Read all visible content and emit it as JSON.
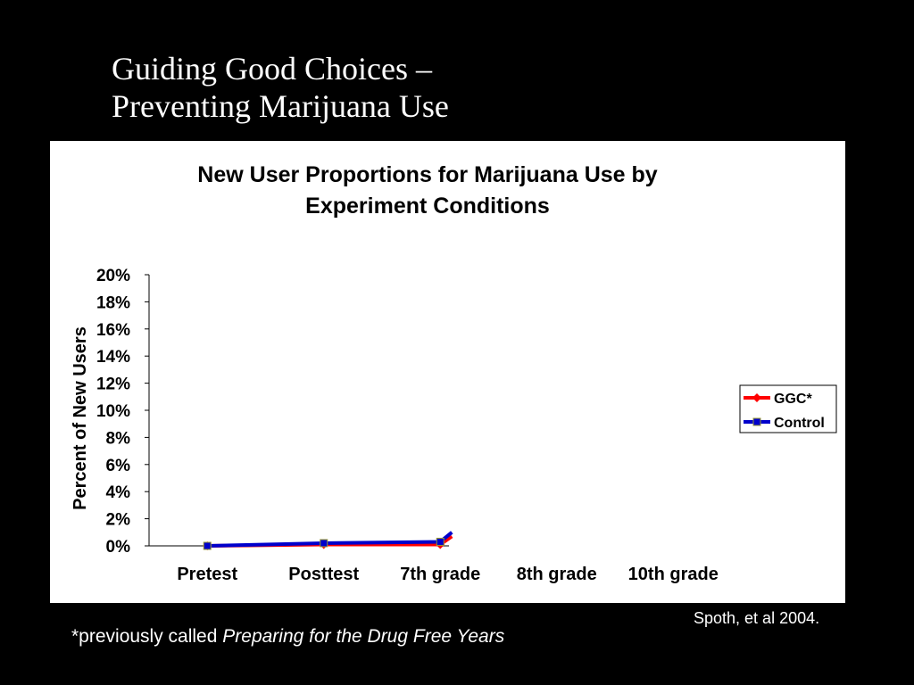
{
  "slide": {
    "title_line1": "Guiding Good Choices –",
    "title_line2": "Preventing Marijuana Use",
    "footnote_prefix": "*previously called ",
    "footnote_italic": "Preparing for the Drug Free Years",
    "citation": "Spoth, et al 2004."
  },
  "colors": {
    "background": "#000000",
    "panel": "#ffffff",
    "ggc": "#ff0000",
    "control": "#0000cc"
  },
  "chart_data": {
    "type": "line",
    "title_line1": "New User Proportions for Marijuana Use by",
    "title_line2": "Experiment Conditions",
    "xlabel": "",
    "ylabel": "Percent of New Users",
    "categories": [
      "Pretest",
      "Posttest",
      "7th grade",
      "8th grade",
      "10th grade"
    ],
    "yticks": [
      "0%",
      "2%",
      "4%",
      "6%",
      "8%",
      "10%",
      "12%",
      "14%",
      "16%",
      "18%",
      "20%"
    ],
    "ylim": [
      0,
      20
    ],
    "legend_position": "right",
    "series": [
      {
        "name": "GGC*",
        "color": "#ff0000",
        "marker": "diamond",
        "x": [
          0,
          1,
          2,
          2.1
        ],
        "values": [
          0.0,
          0.1,
          0.1,
          0.7
        ]
      },
      {
        "name": "Control",
        "color": "#0000cc",
        "marker": "square",
        "x": [
          0,
          1,
          2,
          2.1
        ],
        "values": [
          0.0,
          0.2,
          0.3,
          1.0
        ]
      }
    ]
  }
}
